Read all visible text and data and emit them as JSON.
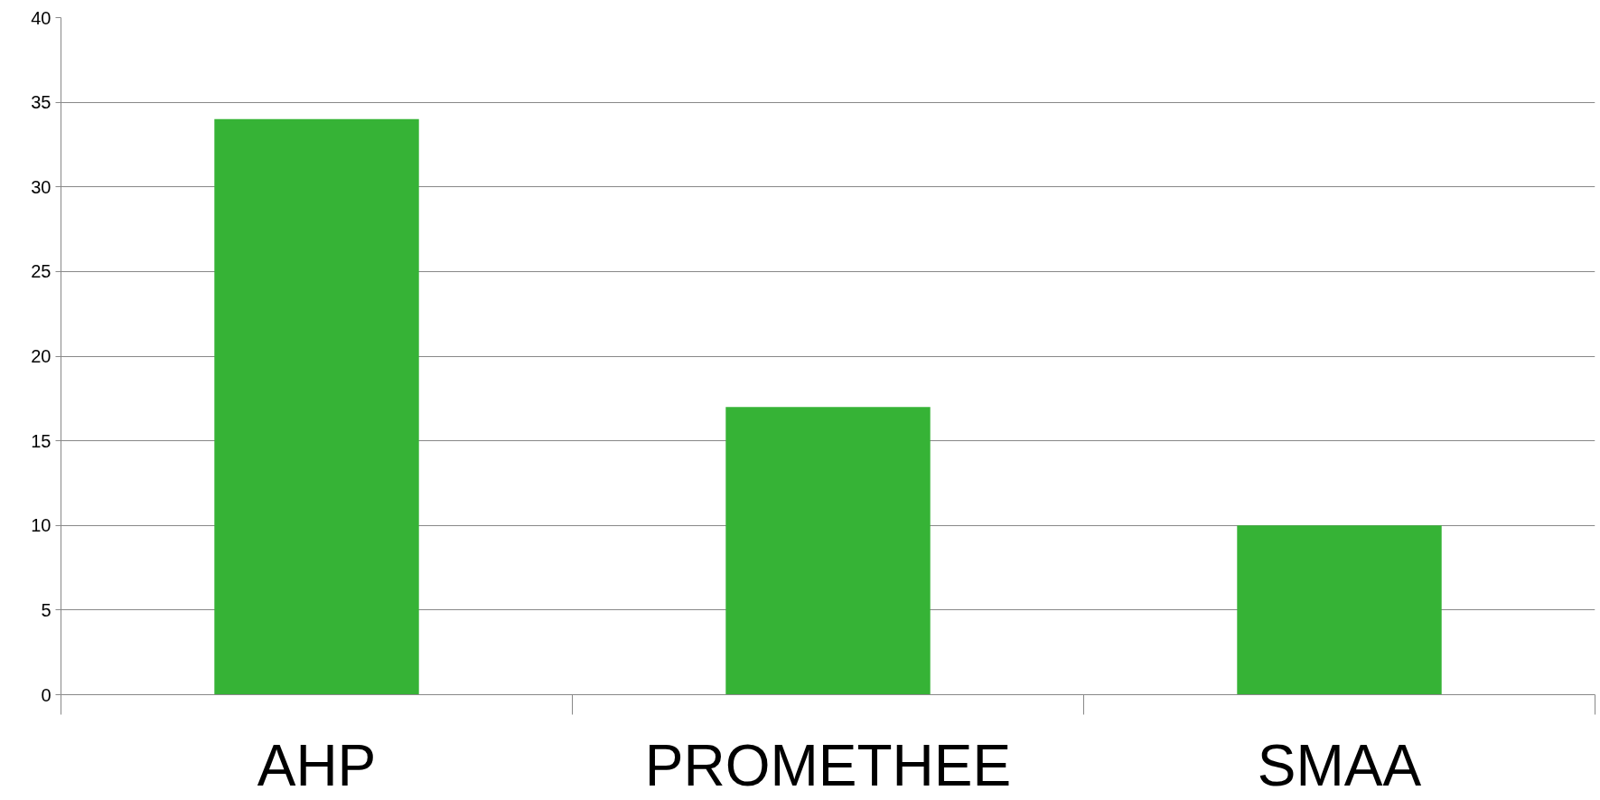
{
  "chart_data": {
    "type": "bar",
    "categories": [
      "AHP",
      "PROMETHEE",
      "SMAA"
    ],
    "values": [
      34,
      17,
      10
    ],
    "color": "#36b336",
    "ylim": [
      0,
      40
    ],
    "yticks": [
      0,
      5,
      10,
      15,
      20,
      25,
      30,
      35,
      40
    ],
    "grid": "y"
  }
}
